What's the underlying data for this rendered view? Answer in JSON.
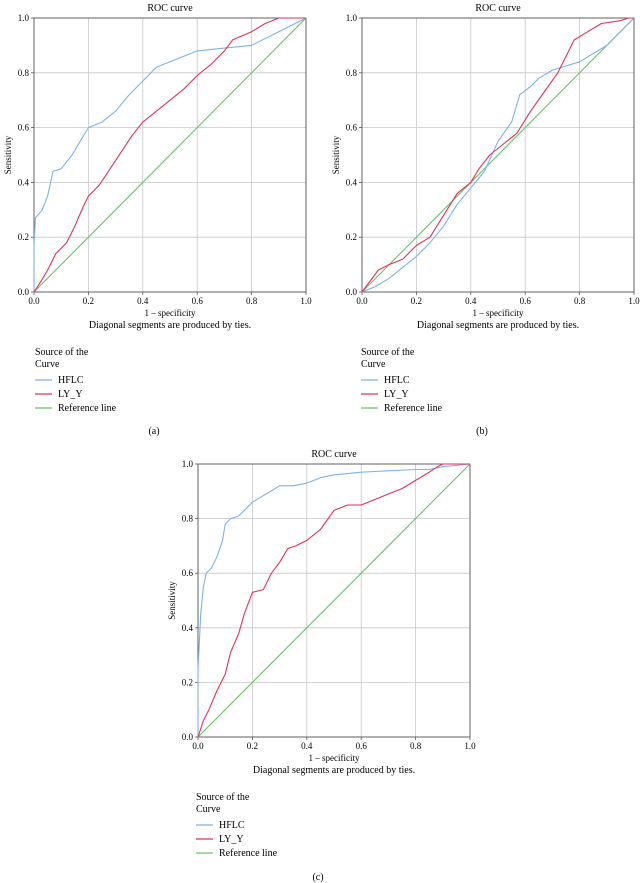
{
  "chart_data": [
    {
      "panel_label": "(a)",
      "type": "line",
      "title": "ROC curve",
      "xlabel": "1 – specificity",
      "ylabel": "Sensitivity",
      "xlim": [
        0,
        1
      ],
      "ylim": [
        0,
        1
      ],
      "xticks": [
        "0.0",
        "0.2",
        "0.4",
        "0.6",
        "0.8",
        "1.0"
      ],
      "yticks": [
        "0.0",
        "0.2",
        "0.4",
        "0.6",
        "0.8",
        "1.0"
      ],
      "grid": true,
      "note": "Diagonal segments are produced by ties.",
      "legend_title": [
        "Source of the",
        "Curve"
      ],
      "series": [
        {
          "name": "HFLC",
          "color": "#7fb2e5",
          "points": [
            [
              0,
              0
            ],
            [
              0,
              0.17
            ],
            [
              0.005,
              0.27
            ],
            [
              0.03,
              0.3
            ],
            [
              0.05,
              0.35
            ],
            [
              0.07,
              0.44
            ],
            [
              0.1,
              0.45
            ],
            [
              0.14,
              0.5
            ],
            [
              0.17,
              0.55
            ],
            [
              0.2,
              0.6
            ],
            [
              0.25,
              0.62
            ],
            [
              0.3,
              0.66
            ],
            [
              0.35,
              0.72
            ],
            [
              0.4,
              0.77
            ],
            [
              0.45,
              0.82
            ],
            [
              0.5,
              0.84
            ],
            [
              0.6,
              0.88
            ],
            [
              0.7,
              0.89
            ],
            [
              0.8,
              0.9
            ],
            [
              0.9,
              0.95
            ],
            [
              1,
              1
            ]
          ]
        },
        {
          "name": "LY_Y",
          "color": "#e0325a",
          "points": [
            [
              0,
              0
            ],
            [
              0.02,
              0.03
            ],
            [
              0.05,
              0.08
            ],
            [
              0.08,
              0.14
            ],
            [
              0.12,
              0.18
            ],
            [
              0.15,
              0.24
            ],
            [
              0.18,
              0.31
            ],
            [
              0.2,
              0.35
            ],
            [
              0.24,
              0.39
            ],
            [
              0.28,
              0.45
            ],
            [
              0.32,
              0.51
            ],
            [
              0.36,
              0.57
            ],
            [
              0.4,
              0.62
            ],
            [
              0.45,
              0.66
            ],
            [
              0.5,
              0.7
            ],
            [
              0.55,
              0.74
            ],
            [
              0.6,
              0.79
            ],
            [
              0.65,
              0.83
            ],
            [
              0.7,
              0.88
            ],
            [
              0.73,
              0.92
            ],
            [
              0.8,
              0.95
            ],
            [
              0.85,
              0.98
            ],
            [
              0.9,
              1
            ],
            [
              1,
              1
            ]
          ]
        },
        {
          "name": "Reference line",
          "color": "#6cc06a",
          "points": [
            [
              0,
              0
            ],
            [
              1,
              1
            ]
          ]
        }
      ]
    },
    {
      "panel_label": "(b)",
      "type": "line",
      "title": "ROC curve",
      "xlabel": "1 – specificity",
      "ylabel": "Sensitivity",
      "xlim": [
        0,
        1
      ],
      "ylim": [
        0,
        1
      ],
      "xticks": [
        "0.0",
        "0.2",
        "0.4",
        "0.6",
        "0.8",
        "1.0"
      ],
      "yticks": [
        "0.0",
        "0.2",
        "0.4",
        "0.6",
        "0.8",
        "1.0"
      ],
      "grid": true,
      "note": "Diagonal segments are produced by ties.",
      "legend_title": [
        "Source of the",
        "Curve"
      ],
      "series": [
        {
          "name": "HFLC",
          "color": "#7fb2e5",
          "points": [
            [
              0,
              0
            ],
            [
              0.05,
              0.02
            ],
            [
              0.1,
              0.05
            ],
            [
              0.15,
              0.09
            ],
            [
              0.2,
              0.13
            ],
            [
              0.25,
              0.18
            ],
            [
              0.3,
              0.24
            ],
            [
              0.35,
              0.32
            ],
            [
              0.4,
              0.38
            ],
            [
              0.45,
              0.44
            ],
            [
              0.5,
              0.55
            ],
            [
              0.55,
              0.62
            ],
            [
              0.58,
              0.72
            ],
            [
              0.62,
              0.75
            ],
            [
              0.65,
              0.78
            ],
            [
              0.7,
              0.81
            ],
            [
              0.8,
              0.84
            ],
            [
              0.9,
              0.9
            ],
            [
              1,
              1
            ]
          ]
        },
        {
          "name": "LY_Y",
          "color": "#e0325a",
          "points": [
            [
              0,
              0
            ],
            [
              0.03,
              0.04
            ],
            [
              0.06,
              0.08
            ],
            [
              0.1,
              0.1
            ],
            [
              0.15,
              0.12
            ],
            [
              0.2,
              0.17
            ],
            [
              0.25,
              0.2
            ],
            [
              0.3,
              0.28
            ],
            [
              0.35,
              0.36
            ],
            [
              0.4,
              0.4
            ],
            [
              0.43,
              0.45
            ],
            [
              0.47,
              0.5
            ],
            [
              0.52,
              0.54
            ],
            [
              0.57,
              0.58
            ],
            [
              0.62,
              0.66
            ],
            [
              0.67,
              0.73
            ],
            [
              0.72,
              0.8
            ],
            [
              0.75,
              0.86
            ],
            [
              0.78,
              0.92
            ],
            [
              0.83,
              0.95
            ],
            [
              0.88,
              0.98
            ],
            [
              0.95,
              0.99
            ],
            [
              0.98,
              1
            ],
            [
              1,
              1
            ]
          ]
        },
        {
          "name": "Reference line",
          "color": "#6cc06a",
          "points": [
            [
              0,
              0
            ],
            [
              1,
              1
            ]
          ]
        }
      ]
    },
    {
      "panel_label": "(c)",
      "type": "line",
      "title": "ROC curve",
      "xlabel": "1 – specificity",
      "ylabel": "Sensitivity",
      "xlim": [
        0,
        1
      ],
      "ylim": [
        0,
        1
      ],
      "xticks": [
        "0.0",
        "0.2",
        "0.4",
        "0.6",
        "0.8",
        "1.0"
      ],
      "yticks": [
        "0.0",
        "0.2",
        "0.4",
        "0.6",
        "0.8",
        "1.0"
      ],
      "grid": true,
      "note": "Diagonal segments are produced by ties.",
      "legend_title": [
        "Source of the",
        "Curve"
      ],
      "series": [
        {
          "name": "HFLC",
          "color": "#7fb2e5",
          "points": [
            [
              0,
              0
            ],
            [
              0,
              0.25
            ],
            [
              0.005,
              0.35
            ],
            [
              0.01,
              0.45
            ],
            [
              0.02,
              0.55
            ],
            [
              0.03,
              0.6
            ],
            [
              0.05,
              0.62
            ],
            [
              0.07,
              0.66
            ],
            [
              0.09,
              0.72
            ],
            [
              0.1,
              0.78
            ],
            [
              0.12,
              0.8
            ],
            [
              0.15,
              0.81
            ],
            [
              0.18,
              0.84
            ],
            [
              0.2,
              0.86
            ],
            [
              0.25,
              0.89
            ],
            [
              0.3,
              0.92
            ],
            [
              0.35,
              0.92
            ],
            [
              0.4,
              0.93
            ],
            [
              0.45,
              0.95
            ],
            [
              0.5,
              0.96
            ],
            [
              0.6,
              0.97
            ],
            [
              0.7,
              0.975
            ],
            [
              0.8,
              0.98
            ],
            [
              0.85,
              0.98
            ],
            [
              0.9,
              0.99
            ],
            [
              1,
              1
            ]
          ]
        },
        {
          "name": "LY_Y",
          "color": "#e0325a",
          "points": [
            [
              0,
              0
            ],
            [
              0.02,
              0.06
            ],
            [
              0.04,
              0.1
            ],
            [
              0.07,
              0.17
            ],
            [
              0.1,
              0.23
            ],
            [
              0.12,
              0.31
            ],
            [
              0.15,
              0.38
            ],
            [
              0.17,
              0.45
            ],
            [
              0.2,
              0.53
            ],
            [
              0.24,
              0.54
            ],
            [
              0.27,
              0.6
            ],
            [
              0.3,
              0.64
            ],
            [
              0.33,
              0.69
            ],
            [
              0.36,
              0.7
            ],
            [
              0.4,
              0.72
            ],
            [
              0.45,
              0.76
            ],
            [
              0.5,
              0.83
            ],
            [
              0.55,
              0.85
            ],
            [
              0.6,
              0.85
            ],
            [
              0.65,
              0.87
            ],
            [
              0.7,
              0.89
            ],
            [
              0.75,
              0.91
            ],
            [
              0.8,
              0.94
            ],
            [
              0.85,
              0.97
            ],
            [
              0.88,
              0.99
            ],
            [
              0.9,
              1
            ],
            [
              1,
              1
            ]
          ]
        },
        {
          "name": "Reference line",
          "color": "#6cc06a",
          "points": [
            [
              0,
              0
            ],
            [
              1,
              1
            ]
          ]
        }
      ]
    }
  ]
}
